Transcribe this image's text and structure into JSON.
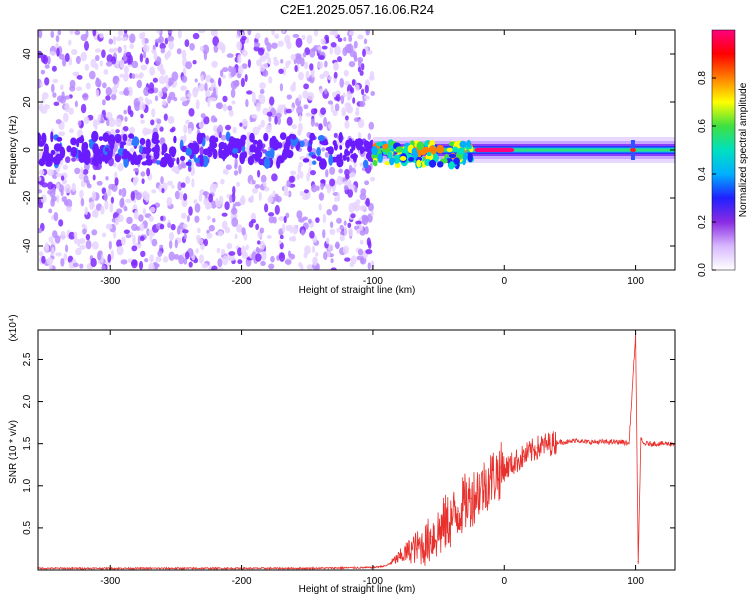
{
  "title": "C2E1.2025.057.16.06.R24",
  "colors": {
    "spectrogram_noise": "#7f28ff",
    "snr_line": "#e8302c",
    "background": "#ffffff",
    "axis": "#000000"
  },
  "chart_data": [
    {
      "type": "heatmap",
      "title": "C2E1.2025.057.16.06.R24",
      "xlabel": "Height of straight line (km)",
      "ylabel": "Frequency (Hz)",
      "xlim": [
        -355,
        130
      ],
      "ylim": [
        -50,
        50
      ],
      "xticks": [
        -300,
        -200,
        -100,
        0,
        100
      ],
      "yticks": [
        -40,
        -20,
        0,
        20,
        40
      ],
      "colorbar": {
        "label": "Normalized spectral amplitude",
        "range": [
          0,
          1
        ],
        "ticks": [
          "0.0",
          "0.2",
          "0.4",
          "0.6",
          "0.8"
        ],
        "colormap": [
          "#ffffff",
          "#d8b8ff",
          "#8a2be2",
          "#2020ff",
          "#00b0ff",
          "#00e0c0",
          "#40e040",
          "#ffff00",
          "#ff8000",
          "#ff0000",
          "#ff0080"
        ]
      },
      "regions": [
        {
          "x_range": [
            -355,
            -100
          ],
          "freq_range": [
            -50,
            50
          ],
          "amplitude": 0.1
        },
        {
          "x_range": [
            -100,
            130
          ],
          "center_freq": 0,
          "amplitude": 0.55
        },
        {
          "x_range": [
            -20,
            5
          ],
          "center_freq": 0,
          "amplitude": 0.95
        }
      ]
    },
    {
      "type": "line",
      "xlabel": "Height of straight line (km)",
      "ylabel": "SNR (10 * v/v)",
      "y_multiplier": "(x10⁴)",
      "xlim": [
        -355,
        130
      ],
      "ylim": [
        0,
        2.85
      ],
      "xticks": [
        -300,
        -200,
        -100,
        0,
        100
      ],
      "yticks": [
        "0.5",
        "1.0",
        "1.5",
        "2.0",
        "2.5"
      ],
      "series": [
        {
          "x": [
            -355,
            -300,
            -200,
            -150,
            -100,
            -90,
            -80,
            -70,
            -60,
            -55,
            -50,
            -45,
            -40,
            -35,
            -30,
            -25,
            -20,
            -15,
            -10,
            -5,
            0,
            5,
            10,
            15,
            20,
            25,
            30,
            35,
            40,
            45,
            50,
            55,
            60,
            70,
            80,
            90,
            95,
            100,
            102,
            104,
            106,
            110,
            120,
            130
          ],
          "y": [
            0.02,
            0.02,
            0.02,
            0.02,
            0.03,
            0.05,
            0.15,
            0.25,
            0.3,
            0.4,
            0.45,
            0.55,
            0.6,
            0.7,
            0.8,
            0.85,
            0.95,
            1.0,
            1.1,
            1.15,
            1.2,
            1.25,
            1.3,
            1.35,
            1.4,
            1.45,
            1.48,
            1.5,
            1.52,
            1.52,
            1.52,
            1.55,
            1.52,
            1.52,
            1.52,
            1.52,
            1.5,
            2.8,
            0.1,
            1.55,
            1.5,
            1.5,
            1.5,
            1.5
          ]
        }
      ]
    }
  ]
}
